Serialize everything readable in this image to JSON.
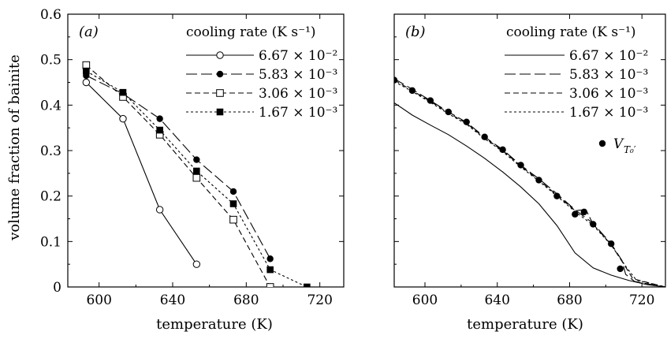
{
  "chart_data": [
    {
      "type": "line",
      "panel_label": "(a)",
      "xlabel": "temperature (K)",
      "ylabel": "volume fraction of bainite",
      "xlim": [
        583,
        733
      ],
      "ylim": [
        0,
        0.6
      ],
      "xticks": [
        600,
        640,
        680,
        720
      ],
      "yticks": [
        0,
        0.1,
        0.2,
        0.3,
        0.4,
        0.5,
        0.6
      ],
      "legend_title": "cooling rate (K s⁻¹)",
      "legend_position": "top-right",
      "series": [
        {
          "name": "6.67 × 10⁻²",
          "line": "solid",
          "marker": "open-circle",
          "x": [
            593,
            613,
            633,
            653
          ],
          "y": [
            0.45,
            0.37,
            0.17,
            0.05
          ]
        },
        {
          "name": "5.83 × 10⁻³",
          "line": "long-dash",
          "marker": "filled-circle",
          "x": [
            593,
            613,
            633,
            653,
            673,
            693
          ],
          "y": [
            0.465,
            0.425,
            0.37,
            0.28,
            0.21,
            0.062
          ]
        },
        {
          "name": "3.06 × 10⁻³",
          "line": "dashed",
          "marker": "open-square",
          "x": [
            593,
            613,
            633,
            653,
            673,
            693
          ],
          "y": [
            0.488,
            0.418,
            0.335,
            0.24,
            0.148,
            0.0
          ]
        },
        {
          "name": "1.67 × 10⁻³",
          "line": "dotted",
          "marker": "filled-square",
          "x": [
            593,
            613,
            633,
            653,
            673,
            693,
            713
          ],
          "y": [
            0.475,
            0.428,
            0.345,
            0.255,
            0.183,
            0.038,
            0.0
          ]
        }
      ]
    },
    {
      "type": "line",
      "panel_label": "(b)",
      "xlabel": "temperature (K)",
      "xlim": [
        583,
        733
      ],
      "ylim": [
        0,
        0.6
      ],
      "xticks": [
        600,
        640,
        680,
        720
      ],
      "legend_title": "cooling rate (K s⁻¹)",
      "legend_position": "top-right",
      "series": [
        {
          "name": "6.67 × 10⁻²",
          "line": "solid",
          "marker": "none",
          "x": [
            583,
            593,
            603,
            613,
            623,
            633,
            643,
            653,
            663,
            673,
            683,
            693,
            703,
            713,
            723,
            733
          ],
          "y": [
            0.405,
            0.378,
            0.356,
            0.335,
            0.31,
            0.283,
            0.253,
            0.22,
            0.183,
            0.135,
            0.075,
            0.042,
            0.026,
            0.014,
            0.005,
            0.0
          ]
        },
        {
          "name": "5.83 × 10⁻³",
          "line": "long-dash",
          "marker": "none",
          "x": [
            583,
            593,
            603,
            613,
            623,
            633,
            643,
            653,
            663,
            673,
            683,
            693,
            703,
            709,
            711,
            716,
            733
          ],
          "y": [
            0.458,
            0.435,
            0.41,
            0.385,
            0.362,
            0.33,
            0.302,
            0.268,
            0.238,
            0.205,
            0.17,
            0.14,
            0.095,
            0.058,
            0.028,
            0.012,
            0.0
          ]
        },
        {
          "name": "3.06 × 10⁻³",
          "line": "dashed",
          "marker": "none",
          "x": [
            583,
            593,
            603,
            613,
            623,
            633,
            643,
            653,
            663,
            673,
            683,
            689,
            693,
            703,
            710,
            715,
            733
          ],
          "y": [
            0.455,
            0.432,
            0.408,
            0.383,
            0.36,
            0.328,
            0.3,
            0.266,
            0.235,
            0.202,
            0.168,
            0.17,
            0.138,
            0.093,
            0.05,
            0.018,
            0.0
          ]
        },
        {
          "name": "1.67 × 10⁻³",
          "line": "dotted",
          "marker": "none",
          "x": [
            583,
            593,
            603,
            613,
            623,
            633,
            643,
            653,
            663,
            673,
            683,
            693,
            703,
            712,
            717,
            733
          ],
          "y": [
            0.452,
            0.43,
            0.406,
            0.381,
            0.358,
            0.326,
            0.298,
            0.264,
            0.233,
            0.2,
            0.166,
            0.136,
            0.092,
            0.04,
            0.015,
            0.0
          ]
        },
        {
          "name": "V",
          "name_subscript": "T₀′",
          "line": "none",
          "marker": "filled-circle",
          "x": [
            583,
            593,
            603,
            613,
            623,
            633,
            643,
            653,
            663,
            673,
            683,
            688,
            693,
            703,
            708
          ],
          "y": [
            0.455,
            0.432,
            0.41,
            0.385,
            0.363,
            0.33,
            0.302,
            0.268,
            0.235,
            0.2,
            0.16,
            0.165,
            0.138,
            0.095,
            0.04
          ]
        }
      ]
    }
  ]
}
